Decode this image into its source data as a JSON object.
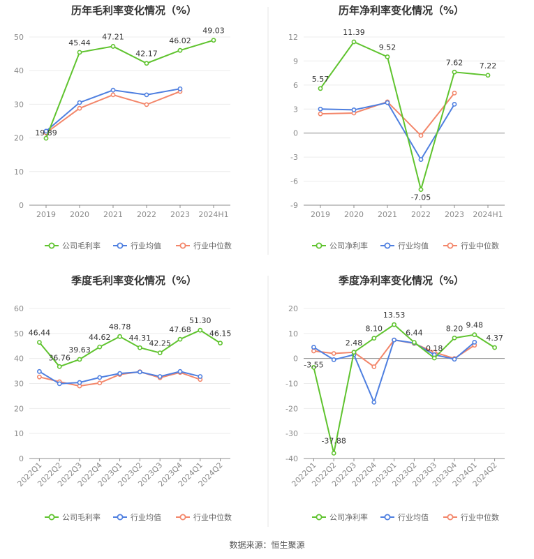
{
  "source_text": "数据来源：恒生聚源",
  "chart_data": [
    {
      "type": "line",
      "title": "历年毛利率变化情况（%）",
      "categories": [
        "2019",
        "2020",
        "2021",
        "2022",
        "2023",
        "2024H1"
      ],
      "ylim": [
        0,
        50
      ],
      "yticks": [
        0,
        10,
        20,
        30,
        40,
        50
      ],
      "series": [
        {
          "name": "公司毛利率",
          "color": "#5fc32e",
          "values": [
            19.89,
            45.44,
            47.21,
            42.17,
            46.02,
            49.03
          ],
          "labeled": true
        },
        {
          "name": "行业均值",
          "color": "#4e7fe0",
          "values": [
            22.0,
            30.5,
            34.2,
            32.8,
            34.6,
            null
          ],
          "labeled": false
        },
        {
          "name": "行业中位数",
          "color": "#f3866a",
          "values": [
            21.5,
            28.8,
            32.8,
            29.9,
            33.8,
            null
          ],
          "labeled": false
        }
      ],
      "data_labels": [
        "19.89",
        "45.44",
        "47.21",
        "42.17",
        "46.02",
        "49.03"
      ]
    },
    {
      "type": "line",
      "title": "历年净利率变化情况（%）",
      "categories": [
        "2019",
        "2020",
        "2021",
        "2022",
        "2023",
        "2024H1"
      ],
      "ylim": [
        -9,
        12
      ],
      "yticks": [
        -9,
        -6,
        -3,
        0,
        3,
        6,
        9,
        12
      ],
      "series": [
        {
          "name": "公司净利率",
          "color": "#5fc32e",
          "values": [
            5.57,
            11.39,
            9.52,
            -7.05,
            7.62,
            7.22
          ],
          "labeled": true
        },
        {
          "name": "行业均值",
          "color": "#4e7fe0",
          "values": [
            3.0,
            2.9,
            3.8,
            -3.3,
            3.6,
            null
          ],
          "labeled": false
        },
        {
          "name": "行业中位数",
          "color": "#f3866a",
          "values": [
            2.4,
            2.5,
            3.9,
            -0.3,
            5.0,
            null
          ],
          "labeled": false
        }
      ],
      "data_labels": [
        "5.57",
        "11.39",
        "9.52",
        "-7.05",
        "7.62",
        "7.22"
      ]
    },
    {
      "type": "line",
      "title": "季度毛利率变化情况（%）",
      "categories": [
        "2022Q1",
        "2022Q2",
        "2022Q3",
        "2022Q4",
        "2023Q1",
        "2023Q2",
        "2023Q3",
        "2023Q4",
        "2024Q1",
        "2024Q2"
      ],
      "ylim": [
        0,
        60
      ],
      "yticks": [
        0,
        10,
        20,
        30,
        40,
        50,
        60
      ],
      "series": [
        {
          "name": "公司毛利率",
          "color": "#5fc32e",
          "values": [
            46.44,
            36.76,
            39.63,
            44.62,
            48.78,
            44.31,
            42.25,
            47.68,
            51.3,
            46.15
          ],
          "labeled": true
        },
        {
          "name": "行业均值",
          "color": "#4e7fe0",
          "values": [
            34.8,
            29.9,
            30.4,
            32.4,
            34.0,
            34.6,
            32.8,
            34.8,
            32.8,
            null
          ],
          "labeled": false
        },
        {
          "name": "行业中位数",
          "color": "#f3866a",
          "values": [
            32.6,
            30.7,
            29.0,
            30.2,
            33.6,
            34.7,
            32.3,
            34.4,
            31.6,
            null
          ],
          "labeled": false
        }
      ],
      "data_labels": [
        "46.44",
        "36.76",
        "39.63",
        "44.62",
        "48.78",
        "44.31",
        "42.25",
        "47.68",
        "51.30",
        "46.15"
      ]
    },
    {
      "type": "line",
      "title": "季度净利率变化情况（%）",
      "categories": [
        "2022Q1",
        "2022Q2",
        "2022Q3",
        "2022Q4",
        "2023Q1",
        "2023Q2",
        "2023Q3",
        "2023Q4",
        "2024Q1",
        "2024Q2"
      ],
      "ylim": [
        -40,
        20
      ],
      "yticks": [
        -40,
        -30,
        -20,
        -10,
        0,
        10,
        20
      ],
      "series": [
        {
          "name": "公司净利率",
          "color": "#5fc32e",
          "values": [
            -3.55,
            -37.88,
            2.48,
            8.1,
            13.53,
            6.44,
            0.18,
            8.2,
            9.48,
            4.37
          ],
          "labeled": true
        },
        {
          "name": "行业均值",
          "color": "#4e7fe0",
          "values": [
            4.5,
            -0.5,
            1.5,
            -17.5,
            7.4,
            6.2,
            1.5,
            -0.3,
            6.5,
            null
          ],
          "labeled": false
        },
        {
          "name": "行业中位数",
          "color": "#f3866a",
          "values": [
            3.0,
            2.0,
            2.5,
            -3.3,
            7.4,
            6.0,
            2.5,
            0.0,
            5.3,
            null
          ],
          "labeled": false
        }
      ],
      "data_labels": [
        "-3.55",
        "-37.88",
        "2.48",
        "8.10",
        "13.53",
        "6.44",
        "0.18",
        "8.20",
        "9.48",
        "4.37"
      ]
    }
  ]
}
